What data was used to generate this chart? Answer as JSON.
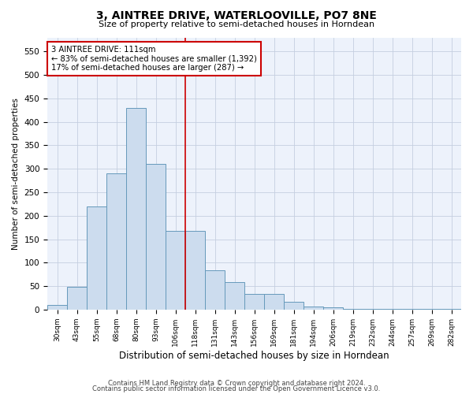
{
  "title": "3, AINTREE DRIVE, WATERLOOVILLE, PO7 8NE",
  "subtitle": "Size of property relative to semi-detached houses in Horndean",
  "xlabel": "Distribution of semi-detached houses by size in Horndean",
  "ylabel": "Number of semi-detached properties",
  "bar_color": "#ccdcee",
  "bar_edge_color": "#6699bb",
  "categories": [
    "30sqm",
    "43sqm",
    "55sqm",
    "68sqm",
    "80sqm",
    "93sqm",
    "106sqm",
    "118sqm",
    "131sqm",
    "143sqm",
    "156sqm",
    "169sqm",
    "181sqm",
    "194sqm",
    "206sqm",
    "219sqm",
    "232sqm",
    "244sqm",
    "257sqm",
    "269sqm",
    "282sqm"
  ],
  "values": [
    10,
    48,
    220,
    290,
    430,
    310,
    168,
    168,
    83,
    58,
    33,
    33,
    16,
    7,
    4,
    2,
    1,
    1,
    1,
    1,
    1
  ],
  "ylim": [
    0,
    580
  ],
  "yticks": [
    0,
    50,
    100,
    150,
    200,
    250,
    300,
    350,
    400,
    450,
    500,
    550
  ],
  "annotation_title": "3 AINTREE DRIVE: 111sqm",
  "annotation_line1": "← 83% of semi-detached houses are smaller (1,392)",
  "annotation_line2": "17% of semi-detached houses are larger (287) →",
  "footer1": "Contains HM Land Registry data © Crown copyright and database right 2024.",
  "footer2": "Contains public sector information licensed under the Open Government Licence v3.0.",
  "background_color": "#edf2fb",
  "grid_color": "#c5cfe0"
}
